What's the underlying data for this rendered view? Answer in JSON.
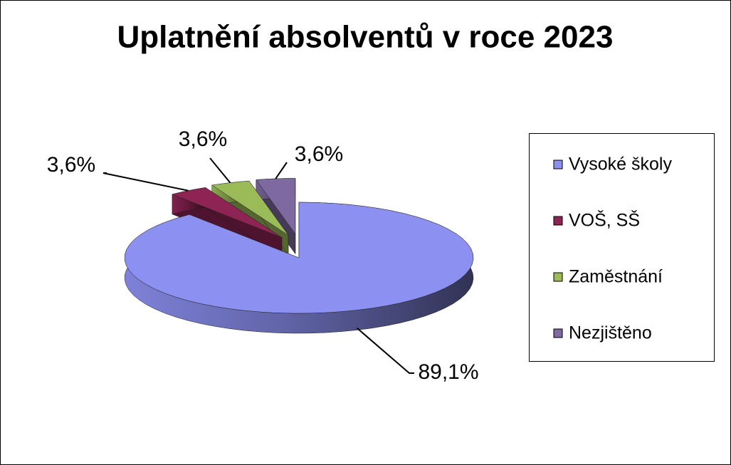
{
  "chart_data": {
    "type": "pie3d",
    "title": "Uplatnění absolventů v roce 2023",
    "categories": [
      "Vysoké školy",
      "VOŠ, SŠ",
      "Zaměstnání",
      "Nezjištěno"
    ],
    "values": [
      89.1,
      3.6,
      3.6,
      3.6
    ],
    "value_labels": [
      "89,1%",
      "3,6%",
      "3,6%",
      "3,6%"
    ],
    "colors": [
      "#8c90f0",
      "#8e2454",
      "#9bbb59",
      "#7e6aa0"
    ],
    "legend": "right"
  }
}
